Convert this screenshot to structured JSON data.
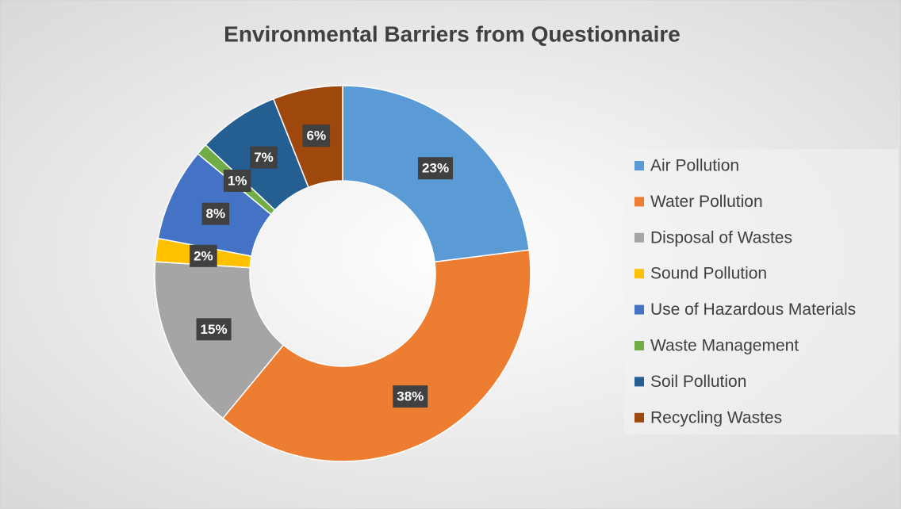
{
  "chart_data": {
    "type": "donut",
    "title": "Environmental Barriers from Questionnaire",
    "categories": [
      "Air Pollution",
      "Water Pollution",
      "Disposal of Wastes",
      "Sound Pollution",
      "Use of Hazardous Materials",
      "Waste Management",
      "Soil Pollution",
      "Recycling Wastes"
    ],
    "values": [
      23,
      38,
      15,
      2,
      8,
      1,
      7,
      6
    ],
    "value_labels": [
      "23%",
      "38%",
      "15%",
      "2%",
      "8%",
      "1%",
      "7%",
      "6%"
    ],
    "colors": [
      "#5b9bd5",
      "#ed7d31",
      "#a5a5a5",
      "#ffc000",
      "#4472c4",
      "#70ad47",
      "#255e91",
      "#9e480e"
    ],
    "legend": "right"
  }
}
